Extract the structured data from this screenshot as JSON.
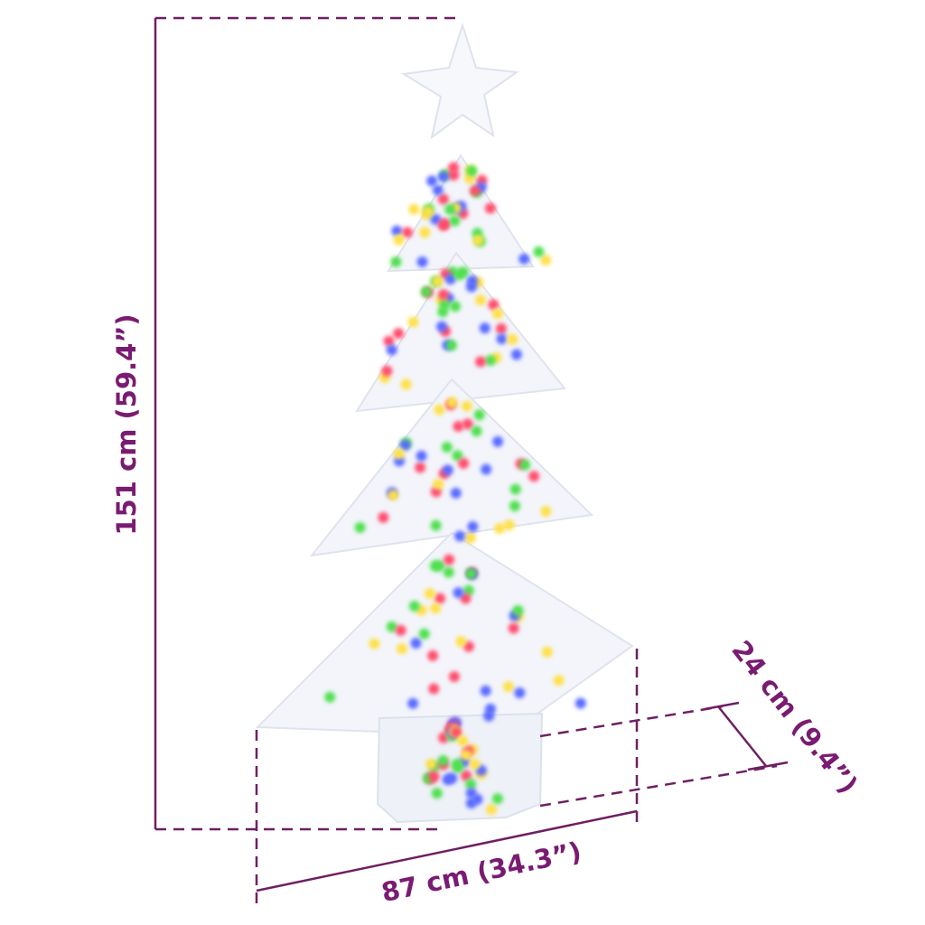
{
  "dimensions": {
    "height_label": "151 cm (59.4”)",
    "width_label": "87 cm (34.3”)",
    "depth_label": "24 cm (9.4”)"
  },
  "colors": {
    "dimension_text": "#7a1b72",
    "dimension_line": "#6e1f63",
    "light_colors": [
      "#ff4d6d",
      "#4fe04f",
      "#5a6bff",
      "#ffe04a"
    ]
  },
  "product": {
    "icon": "christmas-tree-with-star-and-led-lights"
  }
}
